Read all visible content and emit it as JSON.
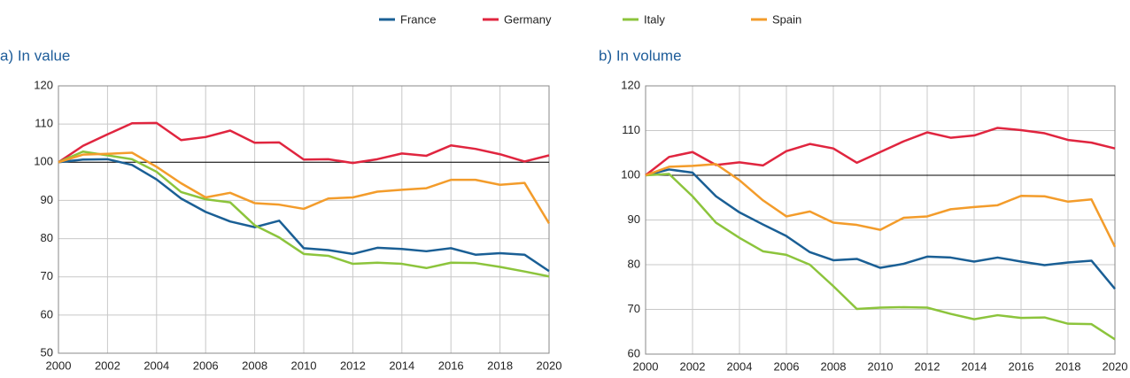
{
  "chart_data": [
    {
      "type": "line",
      "title": "a) In value",
      "x": [
        2000,
        2001,
        2002,
        2003,
        2004,
        2005,
        2006,
        2007,
        2008,
        2009,
        2010,
        2011,
        2012,
        2013,
        2014,
        2015,
        2016,
        2017,
        2018,
        2019,
        2020
      ],
      "xlim": [
        2000,
        2020
      ],
      "xticks": [
        2000,
        2002,
        2004,
        2006,
        2008,
        2010,
        2012,
        2014,
        2016,
        2018,
        2020
      ],
      "ylim": [
        50,
        120
      ],
      "yticks": [
        50,
        60,
        70,
        80,
        90,
        100,
        110,
        120
      ],
      "grid": true,
      "reference_line": 100,
      "series": [
        {
          "name": "France",
          "color": "#1a5f95",
          "values": [
            100,
            100.7,
            100.8,
            99.3,
            95.5,
            90.5,
            87,
            84.5,
            83,
            84.7,
            77.5,
            77,
            76,
            77.6,
            77.3,
            76.7,
            77.5,
            75.8,
            76.2,
            75.8,
            71.5
          ]
        },
        {
          "name": "Germany",
          "color": "#e0253f",
          "values": [
            100,
            104.3,
            107.3,
            110.2,
            110.3,
            105.8,
            106.6,
            108.3,
            105.1,
            105.2,
            100.7,
            100.8,
            99.8,
            100.8,
            102.3,
            101.7,
            104.4,
            103.5,
            102.1,
            100.2,
            101.8
          ]
        },
        {
          "name": "Italy",
          "color": "#8cc43c",
          "values": [
            100,
            102.8,
            101.8,
            100.8,
            97.5,
            92.2,
            90.3,
            89.5,
            83.5,
            80.3,
            76,
            75.5,
            73.4,
            73.7,
            73.4,
            72.3,
            73.7,
            73.6,
            72.6,
            71.4,
            70.1
          ]
        },
        {
          "name": "Spain",
          "color": "#f39c2b",
          "values": [
            100,
            102,
            102.2,
            102.5,
            98.8,
            94.5,
            90.8,
            92,
            89.3,
            88.9,
            87.8,
            90.5,
            90.8,
            92.3,
            92.8,
            93.2,
            95.4,
            95.4,
            94.1,
            94.6,
            84
          ]
        }
      ]
    },
    {
      "type": "line",
      "title": "b) In volume",
      "x": [
        2000,
        2001,
        2002,
        2003,
        2004,
        2005,
        2006,
        2007,
        2008,
        2009,
        2010,
        2011,
        2012,
        2013,
        2014,
        2015,
        2016,
        2017,
        2018,
        2019,
        2020
      ],
      "xlim": [
        2000,
        2020
      ],
      "xticks": [
        2000,
        2002,
        2004,
        2006,
        2008,
        2010,
        2012,
        2014,
        2016,
        2018,
        2020
      ],
      "ylim": [
        60,
        120
      ],
      "yticks": [
        60,
        70,
        80,
        90,
        100,
        110,
        120
      ],
      "grid": true,
      "reference_line": 100,
      "series": [
        {
          "name": "France",
          "color": "#1a5f95",
          "values": [
            100,
            101.3,
            100.6,
            95.3,
            91.7,
            89,
            86.4,
            82.8,
            81,
            81.3,
            79.3,
            80.2,
            81.8,
            81.6,
            80.7,
            81.6,
            80.7,
            79.9,
            80.5,
            80.9,
            74.6
          ]
        },
        {
          "name": "Germany",
          "color": "#e0253f",
          "values": [
            100,
            104.1,
            105.2,
            102.3,
            102.9,
            102.2,
            105.4,
            107,
            106,
            102.8,
            105.2,
            107.6,
            109.6,
            108.4,
            108.9,
            110.6,
            110.1,
            109.4,
            107.9,
            107.3,
            106
          ]
        },
        {
          "name": "Italy",
          "color": "#8cc43c",
          "values": [
            100,
            100.3,
            95.3,
            89.4,
            86,
            83,
            82.2,
            80,
            75.2,
            70.1,
            70.4,
            70.5,
            70.4,
            69,
            67.8,
            68.7,
            68.1,
            68.2,
            66.8,
            66.7,
            63.3
          ]
        },
        {
          "name": "Spain",
          "color": "#f39c2b",
          "values": [
            100,
            101.9,
            102.1,
            102.5,
            98.9,
            94.4,
            90.8,
            91.9,
            89.4,
            88.9,
            87.8,
            90.5,
            90.8,
            92.4,
            92.9,
            93.3,
            95.4,
            95.3,
            94.1,
            94.6,
            84
          ]
        }
      ]
    }
  ]
}
